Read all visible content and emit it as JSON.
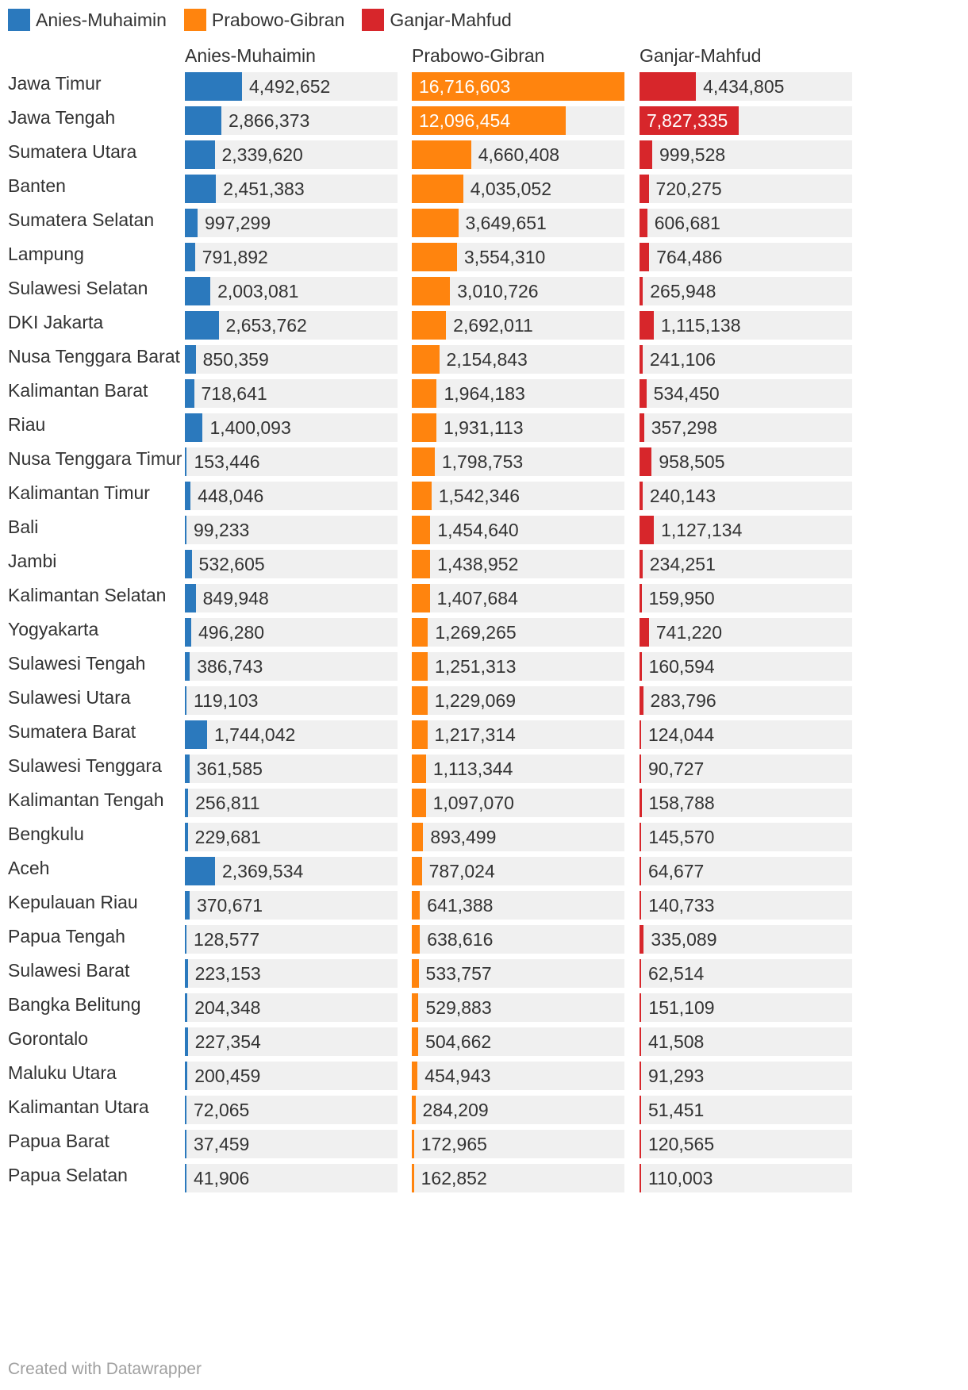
{
  "chart_data": {
    "type": "bar",
    "title": "",
    "orientation": "horizontal",
    "xlabel": "",
    "ylabel": "",
    "legend_position": "top-left",
    "categories": [
      "Jawa Timur",
      "Jawa Tengah",
      "Sumatera Utara",
      "Banten",
      "Sumatera Selatan",
      "Lampung",
      "Sulawesi Selatan",
      "DKI Jakarta",
      "Nusa Tenggara Barat",
      "Kalimantan Barat",
      "Riau",
      "Nusa Tenggara Timur",
      "Kalimantan Timur",
      "Bali",
      "Jambi",
      "Kalimantan Selatan",
      "Yogyakarta",
      "Sulawesi Tengah",
      "Sulawesi Utara",
      "Sumatera Barat",
      "Sulawesi Tenggara",
      "Kalimantan Tengah",
      "Bengkulu",
      "Aceh",
      "Kepulauan Riau",
      "Papua Tengah",
      "Sulawesi Barat",
      "Bangka Belitung",
      "Gorontalo",
      "Maluku Utara",
      "Kalimantan Utara",
      "Papua Barat",
      "Papua Selatan"
    ],
    "xlim": [
      0,
      16716603
    ],
    "series": [
      {
        "name": "Anies-Muhaimin",
        "color": "#2b79bd",
        "value_labels": [
          "4,492,652",
          "2,866,373",
          "2,339,620",
          "2,451,383",
          "997,299",
          "791,892",
          "2,003,081",
          "2,653,762",
          "850,359",
          "718,641",
          "1,400,093",
          "153,446",
          "448,046",
          "99,233",
          "532,605",
          "849,948",
          "496,280",
          "386,743",
          "119,103",
          "1,744,042",
          "361,585",
          "256,811",
          "229,681",
          "2,369,534",
          "370,671",
          "128,577",
          "223,153",
          "204,348",
          "227,354",
          "200,459",
          "72,065",
          "37,459",
          "41,906"
        ],
        "values": [
          4492652,
          2866373,
          2339620,
          2451383,
          997299,
          791892,
          2003081,
          2653762,
          850359,
          718641,
          1400093,
          153446,
          448046,
          99233,
          532605,
          849948,
          496280,
          386743,
          119103,
          1744042,
          361585,
          256811,
          229681,
          2369534,
          370671,
          128577,
          223153,
          204348,
          227354,
          200459,
          72065,
          37459,
          41906
        ]
      },
      {
        "name": "Prabowo-Gibran",
        "color": "#ff840e",
        "value_labels": [
          "16,716,603",
          "12,096,454",
          "4,660,408",
          "4,035,052",
          "3,649,651",
          "3,554,310",
          "3,010,726",
          "2,692,011",
          "2,154,843",
          "1,964,183",
          "1,931,113",
          "1,798,753",
          "1,542,346",
          "1,454,640",
          "1,438,952",
          "1,407,684",
          "1,269,265",
          "1,251,313",
          "1,229,069",
          "1,217,314",
          "1,113,344",
          "1,097,070",
          "893,499",
          "787,024",
          "641,388",
          "638,616",
          "533,757",
          "529,883",
          "504,662",
          "454,943",
          "284,209",
          "172,965",
          "162,852"
        ],
        "values": [
          16716603,
          12096454,
          4660408,
          4035052,
          3649651,
          3554310,
          3010726,
          2692011,
          2154843,
          1964183,
          1931113,
          1798753,
          1542346,
          1454640,
          1438952,
          1407684,
          1269265,
          1251313,
          1229069,
          1217314,
          1113344,
          1097070,
          893499,
          787024,
          641388,
          638616,
          533757,
          529883,
          504662,
          454943,
          284209,
          172965,
          162852
        ]
      },
      {
        "name": "Ganjar-Mahfud",
        "color": "#d7262b",
        "value_labels": [
          "4,434,805",
          "7,827,335",
          "999,528",
          "720,275",
          "606,681",
          "764,486",
          "265,948",
          "1,115,138",
          "241,106",
          "534,450",
          "357,298",
          "958,505",
          "240,143",
          "1,127,134",
          "234,251",
          "159,950",
          "741,220",
          "160,594",
          "283,796",
          "124,044",
          "90,727",
          "158,788",
          "145,570",
          "64,677",
          "140,733",
          "335,089",
          "62,514",
          "151,109",
          "41,508",
          "91,293",
          "51,451",
          "120,565",
          "110,003"
        ],
        "values": [
          4434805,
          7827335,
          999528,
          720275,
          606681,
          764486,
          265948,
          1115138,
          241106,
          534450,
          357298,
          958505,
          240143,
          1127134,
          234251,
          159950,
          741220,
          160594,
          283796,
          124044,
          90727,
          158788,
          145570,
          64677,
          140733,
          335089,
          62514,
          151109,
          41508,
          91293,
          51451,
          120565,
          110003
        ]
      }
    ]
  },
  "footer": {
    "credit": "Created with Datawrapper"
  }
}
